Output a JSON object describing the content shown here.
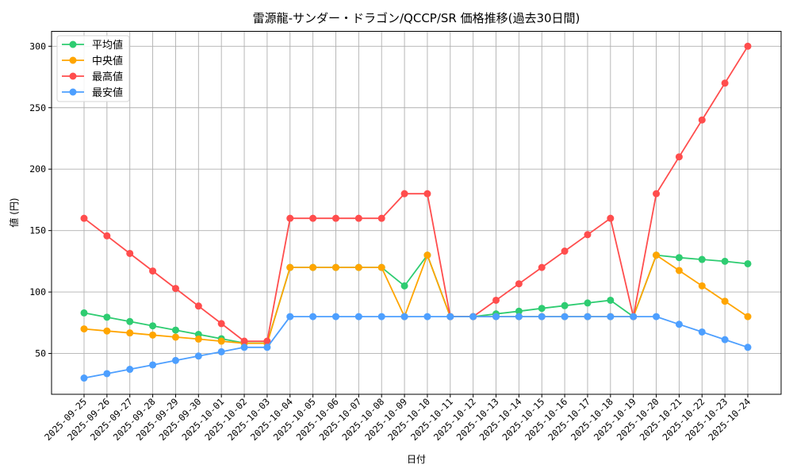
{
  "chart_data": {
    "type": "line",
    "title": "雷源龍-サンダー・ドラゴン/QCCP/SR 価格推移(過去30日間)",
    "xlabel": "日付",
    "ylabel": "値 (円)",
    "ylim": [
      17,
      313
    ],
    "yticks": [
      50,
      100,
      150,
      200,
      250,
      300
    ],
    "grid": true,
    "legend_position": "upper left",
    "x": [
      "2025-09-25",
      "2025-09-26",
      "2025-09-27",
      "2025-09-28",
      "2025-09-29",
      "2025-09-30",
      "2025-10-01",
      "2025-10-02",
      "2025-10-03",
      "2025-10-04",
      "2025-10-05",
      "2025-10-06",
      "2025-10-07",
      "2025-10-08",
      "2025-10-09",
      "2025-10-10",
      "2025-10-11",
      "2025-10-12",
      "2025-10-13",
      "2025-10-14",
      "2025-10-15",
      "2025-10-16",
      "2025-10-17",
      "2025-10-18",
      "2025-10-19",
      "2025-10-20",
      "2025-10-21",
      "2025-10-22",
      "2025-10-23",
      "2025-10-24"
    ],
    "series": [
      {
        "name": "平均値",
        "color": "#2ecc71",
        "values": [
          83,
          79.5,
          76,
          72.5,
          69,
          65.5,
          62,
          58.5,
          58.5,
          120,
          120,
          120,
          120,
          120,
          105,
          130,
          80,
          80,
          82.2,
          84.4,
          86.7,
          88.9,
          91.1,
          93.3,
          80,
          130,
          128,
          126.5,
          125,
          123
        ]
      },
      {
        "name": "中央値",
        "color": "#ffa500",
        "values": [
          70,
          68.3,
          66.7,
          65,
          63.3,
          61.7,
          60,
          58.3,
          58.3,
          120,
          120,
          120,
          120,
          120,
          80,
          130,
          80,
          80,
          80,
          80,
          80,
          80,
          80,
          80,
          80,
          130,
          117.5,
          105,
          92.5,
          80
        ]
      },
      {
        "name": "最高値",
        "color": "#ff4d4d",
        "values": [
          160,
          145.7,
          131.4,
          117.1,
          102.9,
          88.6,
          74.3,
          60,
          60,
          160,
          160,
          160,
          160,
          160,
          180,
          180,
          80,
          80,
          93.3,
          106.7,
          120,
          133.3,
          146.7,
          160,
          80,
          180,
          210,
          240,
          270,
          300
        ]
      },
      {
        "name": "最安値",
        "color": "#4d9fff",
        "values": [
          30,
          33.6,
          37.1,
          40.7,
          44.3,
          47.9,
          51.4,
          55,
          55,
          80,
          80,
          80,
          80,
          80,
          80,
          80,
          80,
          80,
          80,
          80,
          80,
          80,
          80,
          80,
          80,
          80,
          73.75,
          67.5,
          61.25,
          55
        ]
      }
    ]
  }
}
